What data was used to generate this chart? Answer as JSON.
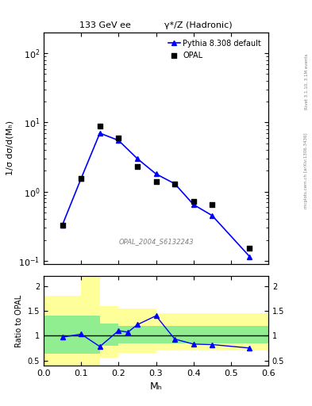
{
  "title_left": "133 GeV ee",
  "title_right": "γ*/Z (Hadronic)",
  "ylabel_main": "1/σ dσ/d(Mₕ)",
  "ylabel_ratio": "Ratio to OPAL",
  "xlabel": "Mₕ",
  "watermark": "OPAL_2004_S6132243",
  "right_label": "mcplots.cern.ch [arXiv:1306.3436]",
  "right_label2": "Rivet 3.1.10, 3.1M events",
  "opal_x": [
    0.05,
    0.1,
    0.15,
    0.2,
    0.25,
    0.3,
    0.35,
    0.4,
    0.45,
    0.55
  ],
  "opal_y": [
    0.33,
    1.55,
    8.8,
    6.0,
    2.3,
    1.4,
    1.3,
    0.72,
    0.65,
    0.15
  ],
  "pythia_x": [
    0.05,
    0.1,
    0.15,
    0.2,
    0.25,
    0.3,
    0.35,
    0.4,
    0.45,
    0.55
  ],
  "pythia_y": [
    0.33,
    1.55,
    7.0,
    5.5,
    3.0,
    1.8,
    1.3,
    0.65,
    0.45,
    0.115
  ],
  "ratio_x": [
    0.05,
    0.1,
    0.15,
    0.2,
    0.225,
    0.25,
    0.3,
    0.35,
    0.4,
    0.45,
    0.55
  ],
  "ratio_y": [
    0.97,
    1.03,
    0.78,
    1.1,
    1.07,
    1.22,
    1.4,
    0.93,
    0.83,
    0.82,
    0.75
  ],
  "band_x": [
    0.0,
    0.05,
    0.1,
    0.15,
    0.2,
    0.3,
    0.4,
    0.5,
    0.6
  ],
  "band_green_lo": [
    0.63,
    0.63,
    0.63,
    0.8,
    0.85,
    0.85,
    0.85,
    0.85,
    0.85
  ],
  "band_green_hi": [
    1.4,
    1.4,
    1.4,
    1.25,
    1.2,
    1.2,
    1.2,
    1.2,
    1.2
  ],
  "band_yellow_lo": [
    0.4,
    0.4,
    0.4,
    0.55,
    0.65,
    0.7,
    0.7,
    0.7,
    0.7
  ],
  "band_yellow_hi": [
    1.8,
    1.8,
    2.2,
    1.6,
    1.55,
    1.45,
    1.45,
    1.45,
    1.45
  ],
  "xlim": [
    0.0,
    0.6
  ],
  "ylim_main": [
    0.09,
    200
  ],
  "ylim_ratio": [
    0.4,
    2.2
  ],
  "opal_color": "black",
  "pythia_color": "blue",
  "green_color": "#90EE90",
  "yellow_color": "#FFFF99",
  "legend_entries": [
    "OPAL",
    "Pythia 8.308 default"
  ]
}
